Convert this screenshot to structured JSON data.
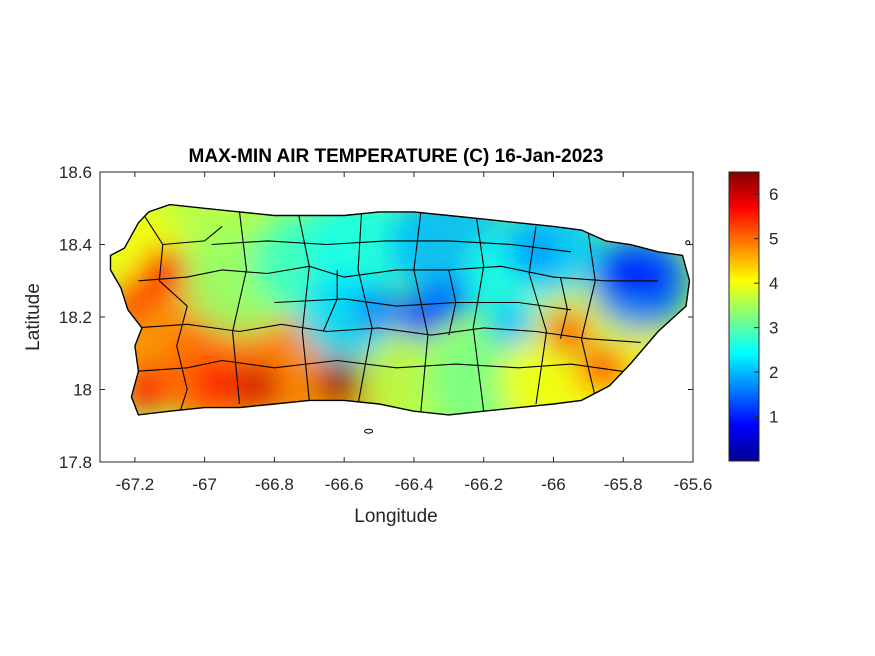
{
  "chart_data": {
    "type": "heatmap",
    "title": "MAX-MIN AIR TEMPERATURE (C) 16-Jan-2023",
    "xlabel": "Longitude",
    "ylabel": "Latitude",
    "xlim": [
      -67.3,
      -65.6
    ],
    "ylim": [
      17.8,
      18.6
    ],
    "xticks": [
      -67.2,
      -67,
      -66.8,
      -66.6,
      -66.4,
      -66.2,
      -66,
      -65.8,
      -65.6
    ],
    "yticks": [
      17.8,
      18,
      18.2,
      18.4,
      18.6
    ],
    "colorbar": {
      "colormap": "jet",
      "range": [
        0,
        6.5
      ],
      "ticks": [
        1,
        2,
        3,
        4,
        5,
        6
      ]
    },
    "grid": false,
    "hotspots": [
      {
        "lon": -66.61,
        "lat": 18.02,
        "value": 6.4
      },
      {
        "lon": -66.85,
        "lat": 18.01,
        "value": 6.0
      },
      {
        "lon": -67.12,
        "lat": 18.33,
        "value": 5.7
      },
      {
        "lon": -67.17,
        "lat": 18.0,
        "value": 5.6
      },
      {
        "lon": -65.96,
        "lat": 18.16,
        "value": 5.3
      },
      {
        "lon": -65.86,
        "lat": 18.06,
        "value": 5.4
      },
      {
        "lon": -67.2,
        "lat": 18.25,
        "value": 5.2
      },
      {
        "lon": -66.97,
        "lat": 18.02,
        "value": 5.6
      }
    ],
    "coldspots": [
      {
        "lon": -66.38,
        "lat": 18.2,
        "value": 1.2
      },
      {
        "lon": -66.3,
        "lat": 18.25,
        "value": 1.5
      },
      {
        "lon": -65.8,
        "lat": 18.32,
        "value": 0.8
      },
      {
        "lon": -65.72,
        "lat": 18.31,
        "value": 0.9
      },
      {
        "lon": -66.5,
        "lat": 18.22,
        "value": 1.6
      },
      {
        "lon": -66.05,
        "lat": 18.38,
        "value": 1.8
      },
      {
        "lon": -66.12,
        "lat": 18.18,
        "value": 2.0
      }
    ]
  }
}
